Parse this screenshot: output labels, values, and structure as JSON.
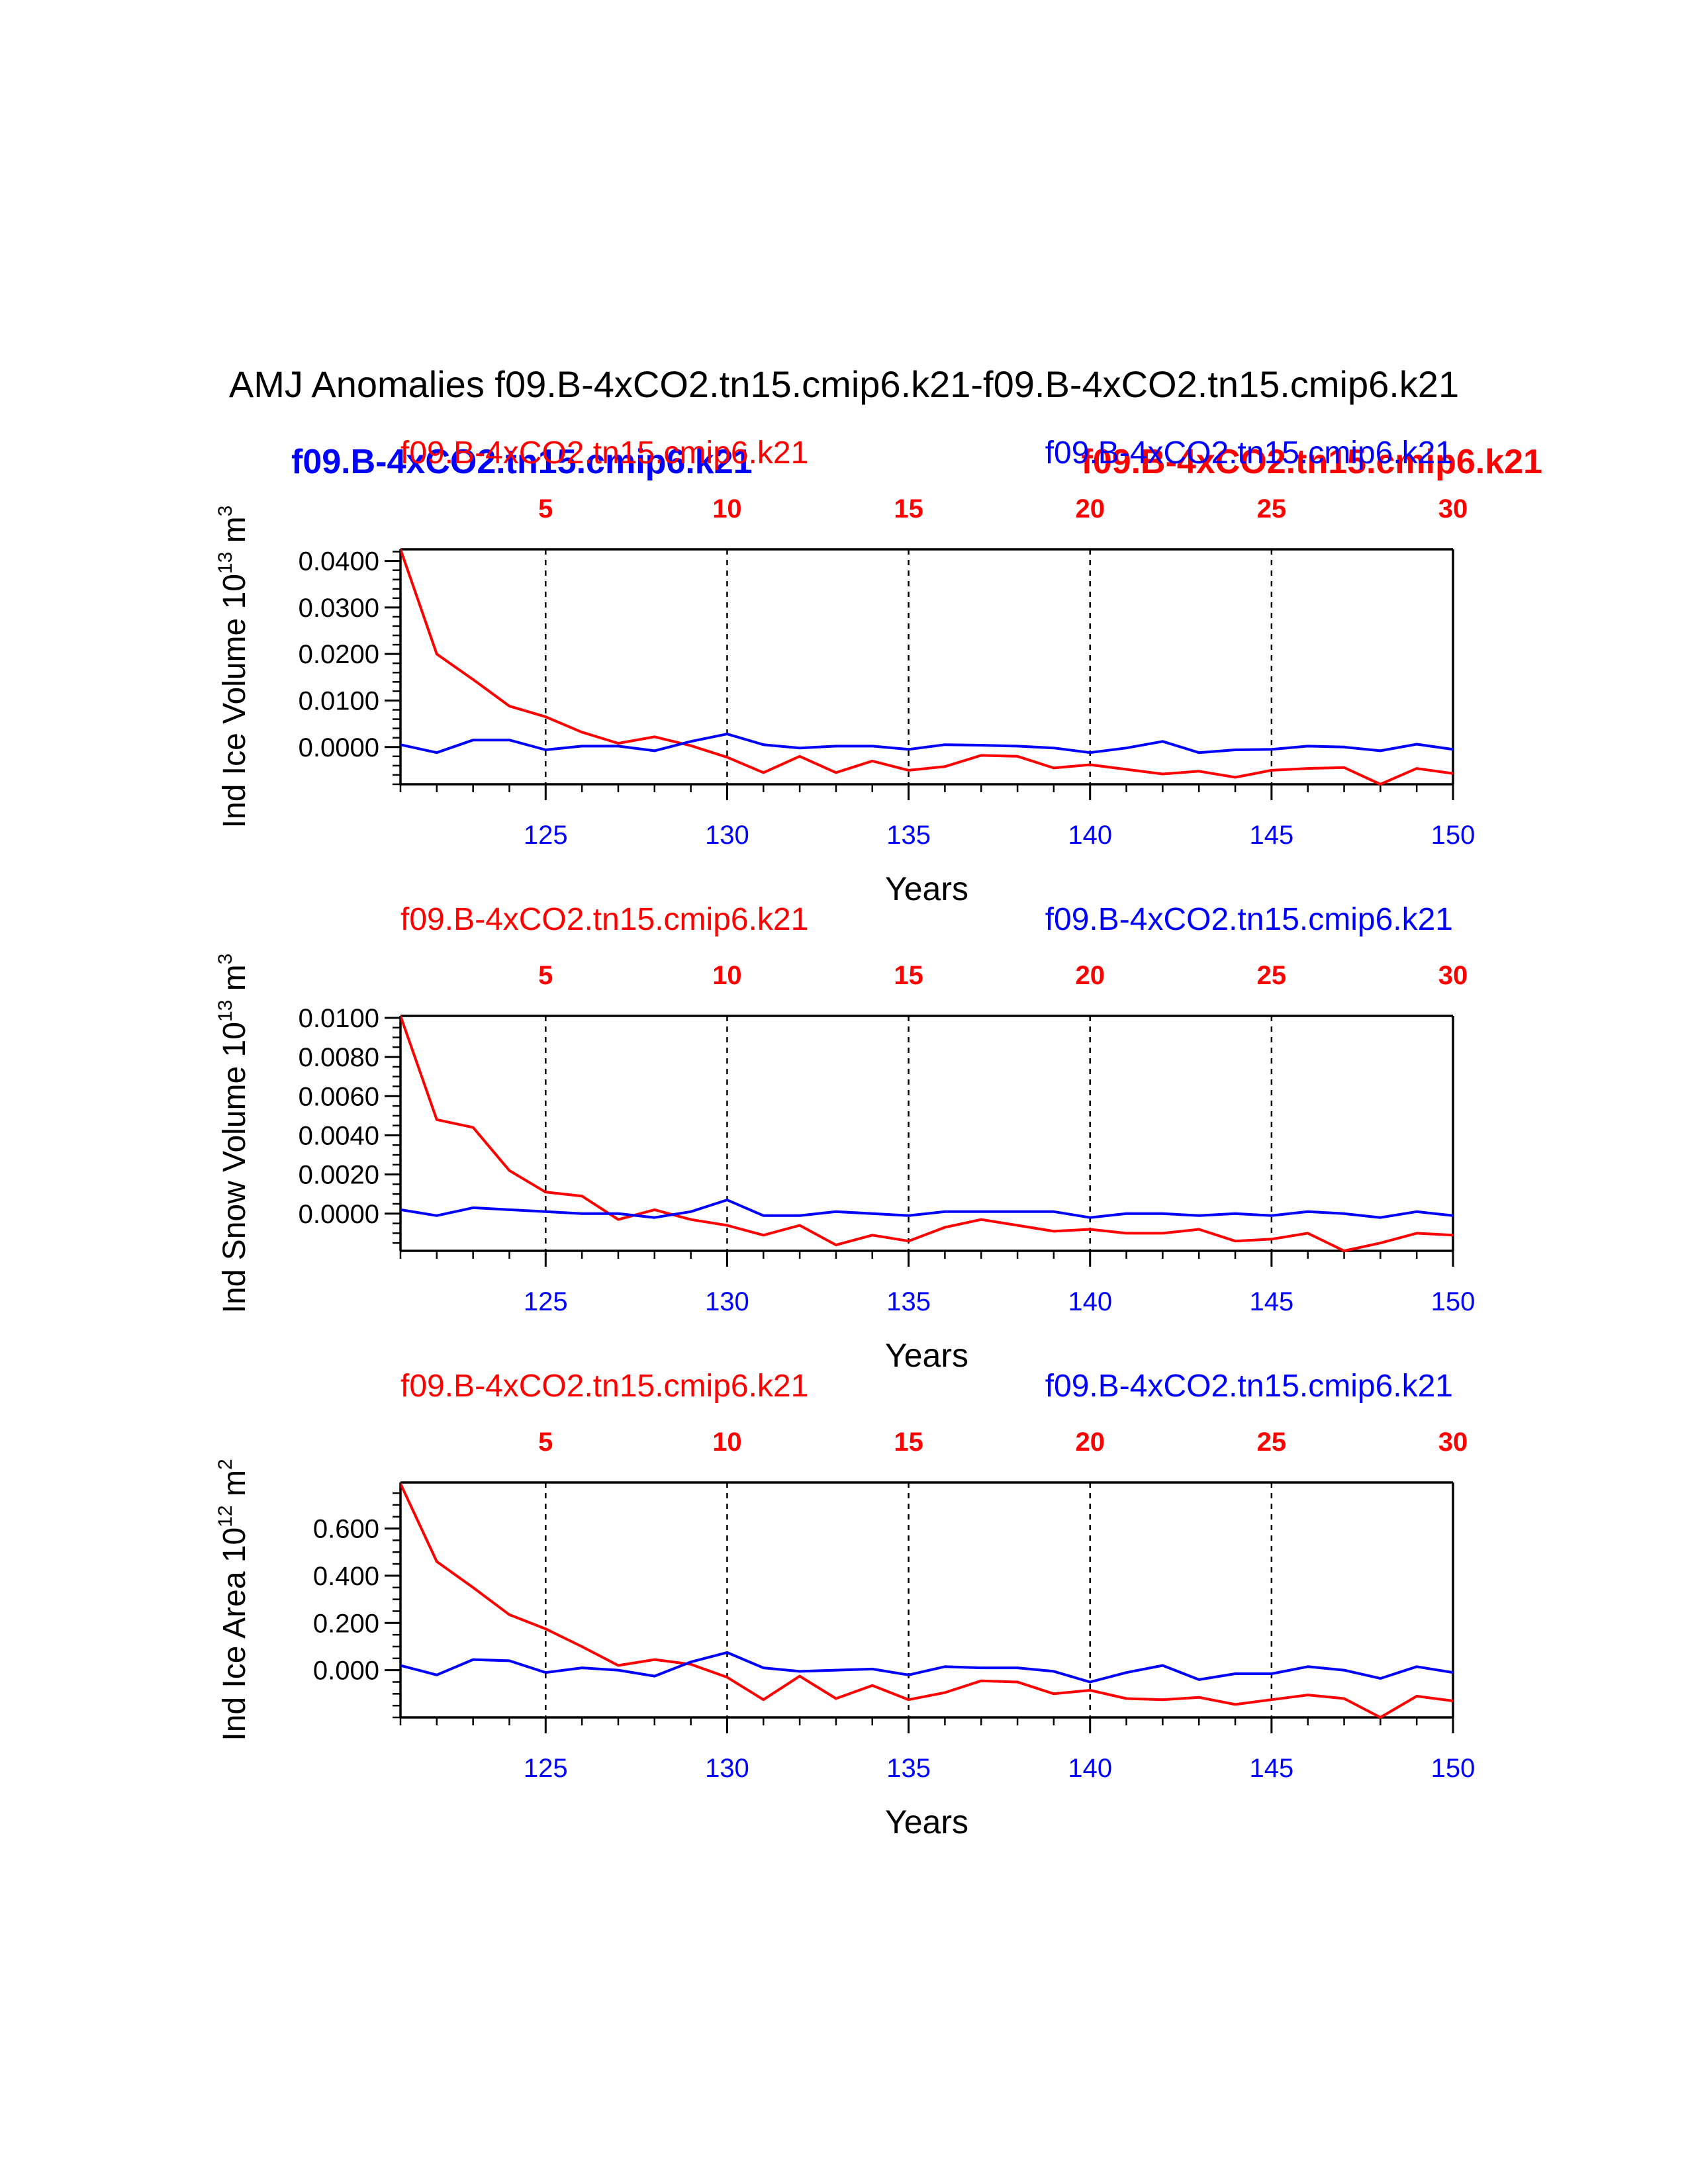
{
  "figure": {
    "title": "AMJ Anomalies f09.B-4xCO2.tn15.cmip6.k21-f09.B-4xCO2.tn15.cmip6.k21",
    "legend_bold": {
      "left": "f09.B-4xCO2.tn15.cmip6.k21",
      "right": "f09.B-4xCO2.tn15.cmip6.k21"
    },
    "colors": {
      "series_a": "#ff0000",
      "series_b": "#0000ff",
      "axis": "#000000"
    }
  },
  "chart_data": [
    {
      "type": "line",
      "name": "ice-volume",
      "ylabel": "Ind Ice Volume 10",
      "ylabel_exp": "13",
      "ylabel_unit": "m",
      "ylabel_unit_exp": "3",
      "xlabel": "Years",
      "top_label_red": "f09.B-4xCO2.tn15.cmip6.k21",
      "top_label_blue": "f09.B-4xCO2.tn15.cmip6.k21",
      "ylim": [
        -0.008,
        0.0425
      ],
      "yticks": [
        0.0,
        0.01,
        0.02,
        0.03,
        0.04
      ],
      "ytick_labels": [
        "0.0000",
        "0.0100",
        "0.0200",
        "0.0300",
        "0.0400"
      ],
      "ytick_minor": 0.002,
      "xlim_bottom": [
        121,
        150
      ],
      "xticks_bottom": [
        125,
        130,
        135,
        140,
        145,
        150
      ],
      "xlim_top": [
        1,
        30
      ],
      "xticks_top": [
        5,
        10,
        15,
        20,
        25,
        30
      ],
      "series": [
        {
          "name": "f09.B-4xCO2.tn15.cmip6.k21 (years 1-30)",
          "color": "#ff0000",
          "axis": "top",
          "x": [
            1,
            2,
            3,
            4,
            5,
            6,
            7,
            8,
            9,
            10,
            11,
            12,
            13,
            14,
            15,
            16,
            17,
            18,
            19,
            20,
            21,
            22,
            23,
            24,
            25,
            26,
            27,
            28,
            29,
            30
          ],
          "values": [
            0.0425,
            0.02,
            0.0145,
            0.0088,
            0.0065,
            0.0032,
            0.0008,
            0.0022,
            0.0003,
            -0.0022,
            -0.0055,
            -0.002,
            -0.0055,
            -0.003,
            -0.005,
            -0.0042,
            -0.0018,
            -0.002,
            -0.0045,
            -0.0038,
            -0.0048,
            -0.0058,
            -0.0052,
            -0.0065,
            -0.005,
            -0.0046,
            -0.0044,
            -0.008,
            -0.0046,
            -0.0057
          ]
        },
        {
          "name": "f09.B-4xCO2.tn15.cmip6.k21 (years 121-150)",
          "color": "#0000ff",
          "axis": "bottom",
          "x": [
            121,
            122,
            123,
            124,
            125,
            126,
            127,
            128,
            129,
            130,
            131,
            132,
            133,
            134,
            135,
            136,
            137,
            138,
            139,
            140,
            141,
            142,
            143,
            144,
            145,
            146,
            147,
            148,
            149,
            150
          ],
          "values": [
            0.0005,
            -0.0012,
            0.0015,
            0.0015,
            -0.0006,
            0.0002,
            0.0002,
            -0.0008,
            0.0012,
            0.0028,
            0.0005,
            -0.0002,
            0.0002,
            0.0002,
            -0.0005,
            0.0005,
            0.0004,
            0.0002,
            -0.0002,
            -0.0012,
            -0.0002,
            0.0012,
            -0.0012,
            -0.0006,
            -0.0005,
            0.0002,
            0.0,
            -0.0008,
            0.0006,
            -0.0005
          ]
        }
      ]
    },
    {
      "type": "line",
      "name": "snow-volume",
      "ylabel": "Ind Snow Volume 10",
      "ylabel_exp": "13",
      "ylabel_unit": "m",
      "ylabel_unit_exp": "3",
      "xlabel": "Years",
      "top_label_red": "f09.B-4xCO2.tn15.cmip6.k21",
      "top_label_blue": "f09.B-4xCO2.tn15.cmip6.k21",
      "ylim": [
        -0.0019,
        0.0101
      ],
      "yticks": [
        0.0,
        0.002,
        0.004,
        0.006,
        0.008,
        0.01
      ],
      "ytick_labels": [
        "0.0000",
        "0.0020",
        "0.0040",
        "0.0060",
        "0.0080",
        "0.0100"
      ],
      "ytick_minor": 0.0005,
      "xlim_bottom": [
        121,
        150
      ],
      "xticks_bottom": [
        125,
        130,
        135,
        140,
        145,
        150
      ],
      "xlim_top": [
        1,
        30
      ],
      "xticks_top": [
        5,
        10,
        15,
        20,
        25,
        30
      ],
      "series": [
        {
          "name": "f09.B-4xCO2.tn15.cmip6.k21 (years 1-30)",
          "color": "#ff0000",
          "axis": "top",
          "x": [
            1,
            2,
            3,
            4,
            5,
            6,
            7,
            8,
            9,
            10,
            11,
            12,
            13,
            14,
            15,
            16,
            17,
            18,
            19,
            20,
            21,
            22,
            23,
            24,
            25,
            26,
            27,
            28,
            29,
            30
          ],
          "values": [
            0.0101,
            0.0048,
            0.0044,
            0.0022,
            0.0011,
            0.0009,
            -0.0003,
            0.0002,
            -0.0003,
            -0.0006,
            -0.0011,
            -0.0006,
            -0.0016,
            -0.0011,
            -0.0014,
            -0.0007,
            -0.0003,
            -0.0006,
            -0.0009,
            -0.0008,
            -0.001,
            -0.001,
            -0.0008,
            -0.0014,
            -0.0013,
            -0.001,
            -0.0019,
            -0.0015,
            -0.001,
            -0.0011
          ]
        },
        {
          "name": "f09.B-4xCO2.tn15.cmip6.k21 (years 121-150)",
          "color": "#0000ff",
          "axis": "bottom",
          "x": [
            121,
            122,
            123,
            124,
            125,
            126,
            127,
            128,
            129,
            130,
            131,
            132,
            133,
            134,
            135,
            136,
            137,
            138,
            139,
            140,
            141,
            142,
            143,
            144,
            145,
            146,
            147,
            148,
            149,
            150
          ],
          "values": [
            0.0002,
            -0.0001,
            0.0003,
            0.0002,
            0.0001,
            0.0,
            0.0,
            -0.0002,
            0.0001,
            0.0007,
            -0.0001,
            -0.0001,
            0.0001,
            0.0,
            -0.0001,
            0.0001,
            0.0001,
            0.0001,
            0.0001,
            -0.0002,
            0.0,
            0.0,
            -0.0001,
            0.0,
            -0.0001,
            0.0001,
            0.0,
            -0.0002,
            0.0001,
            -0.0001
          ]
        }
      ]
    },
    {
      "type": "line",
      "name": "ice-area",
      "ylabel": "Ind Ice Area 10",
      "ylabel_exp": "12",
      "ylabel_unit": "m",
      "ylabel_unit_exp": "2",
      "xlabel": "Years",
      "top_label_red": "f09.B-4xCO2.tn15.cmip6.k21",
      "top_label_blue": "f09.B-4xCO2.tn15.cmip6.k21",
      "ylim": [
        -0.2,
        0.795
      ],
      "yticks": [
        0.0,
        0.2,
        0.4,
        0.6
      ],
      "ytick_labels": [
        "0.000",
        "0.200",
        "0.400",
        "0.600"
      ],
      "ytick_minor": 0.05,
      "xlim_bottom": [
        121,
        150
      ],
      "xticks_bottom": [
        125,
        130,
        135,
        140,
        145,
        150
      ],
      "xlim_top": [
        1,
        30
      ],
      "xticks_top": [
        5,
        10,
        15,
        20,
        25,
        30
      ],
      "series": [
        {
          "name": "f09.B-4xCO2.tn15.cmip6.k21 (years 1-30)",
          "color": "#ff0000",
          "axis": "top",
          "x": [
            1,
            2,
            3,
            4,
            5,
            6,
            7,
            8,
            9,
            10,
            11,
            12,
            13,
            14,
            15,
            16,
            17,
            18,
            19,
            20,
            21,
            22,
            23,
            24,
            25,
            26,
            27,
            28,
            29,
            30
          ],
          "values": [
            0.79,
            0.46,
            0.35,
            0.235,
            0.175,
            0.1,
            0.02,
            0.045,
            0.025,
            -0.03,
            -0.125,
            -0.025,
            -0.12,
            -0.065,
            -0.125,
            -0.095,
            -0.045,
            -0.05,
            -0.1,
            -0.085,
            -0.12,
            -0.125,
            -0.115,
            -0.145,
            -0.125,
            -0.105,
            -0.12,
            -0.2,
            -0.11,
            -0.13
          ]
        },
        {
          "name": "f09.B-4xCO2.tn15.cmip6.k21 (years 121-150)",
          "color": "#0000ff",
          "axis": "bottom",
          "x": [
            121,
            122,
            123,
            124,
            125,
            126,
            127,
            128,
            129,
            130,
            131,
            132,
            133,
            134,
            135,
            136,
            137,
            138,
            139,
            140,
            141,
            142,
            143,
            144,
            145,
            146,
            147,
            148,
            149,
            150
          ],
          "values": [
            0.02,
            -0.02,
            0.045,
            0.04,
            -0.01,
            0.01,
            0.0,
            -0.025,
            0.035,
            0.075,
            0.01,
            -0.005,
            0.0,
            0.005,
            -0.02,
            0.015,
            0.01,
            0.01,
            -0.005,
            -0.05,
            -0.01,
            0.02,
            -0.04,
            -0.015,
            -0.015,
            0.015,
            0.0,
            -0.035,
            0.015,
            -0.01
          ]
        }
      ]
    }
  ]
}
